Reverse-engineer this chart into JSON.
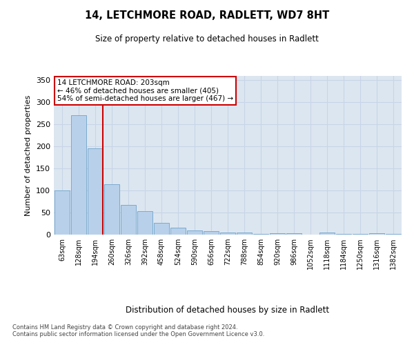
{
  "title_line1": "14, LETCHMORE ROAD, RADLETT, WD7 8HT",
  "title_line2": "Size of property relative to detached houses in Radlett",
  "xlabel": "Distribution of detached houses by size in Radlett",
  "ylabel": "Number of detached properties",
  "bar_values": [
    100,
    271,
    195,
    115,
    68,
    54,
    27,
    16,
    9,
    8,
    4,
    5,
    2,
    3,
    3,
    0,
    4,
    2,
    2,
    3,
    2
  ],
  "bar_labels": [
    "63sqm",
    "128sqm",
    "194sqm",
    "260sqm",
    "326sqm",
    "392sqm",
    "458sqm",
    "524sqm",
    "590sqm",
    "656sqm",
    "722sqm",
    "788sqm",
    "854sqm",
    "920sqm",
    "986sqm",
    "1052sqm",
    "1118sqm",
    "1184sqm",
    "1250sqm",
    "1316sqm",
    "1382sqm"
  ],
  "bar_color": "#b8d0ea",
  "bar_edge_color": "#7aaad0",
  "grid_color": "#c8d4e8",
  "background_color": "#dce6f0",
  "red_line_index": 2,
  "annotation_text_line1": "14 LETCHMORE ROAD: 203sqm",
  "annotation_text_line2": "← 46% of detached houses are smaller (405)",
  "annotation_text_line3": "54% of semi-detached houses are larger (467) →",
  "annotation_box_color": "#ffffff",
  "annotation_border_color": "#cc0000",
  "footer_text": "Contains HM Land Registry data © Crown copyright and database right 2024.\nContains public sector information licensed under the Open Government Licence v3.0.",
  "ylim": [
    0,
    360
  ],
  "yticks": [
    0,
    50,
    100,
    150,
    200,
    250,
    300,
    350
  ]
}
